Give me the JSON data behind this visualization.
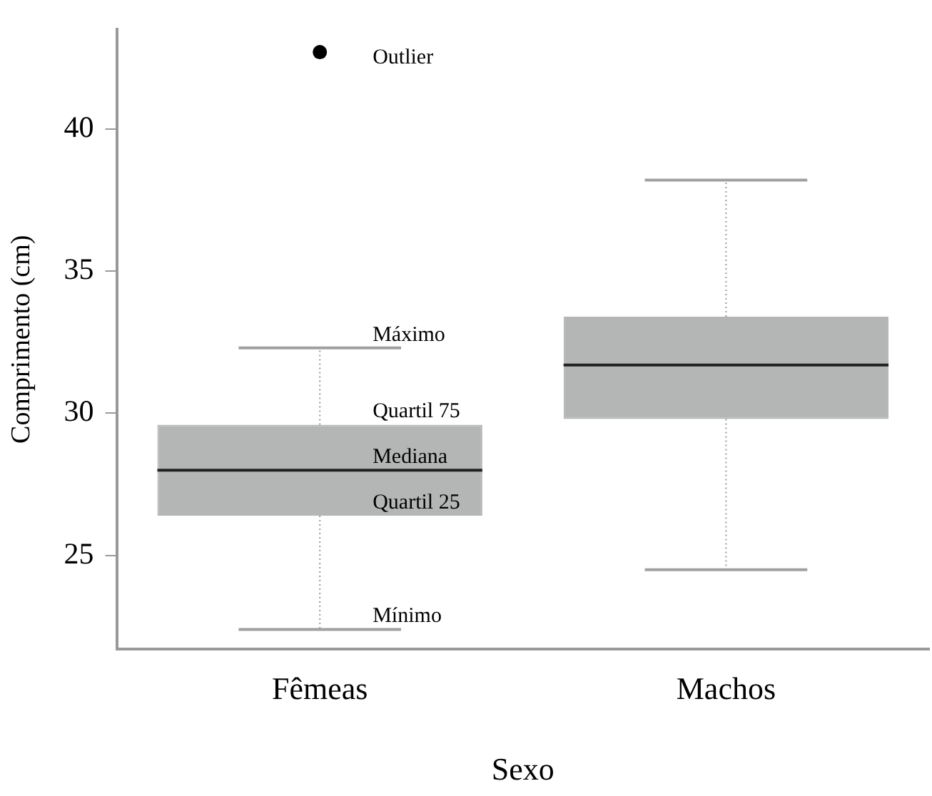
{
  "chart_data": {
    "type": "box",
    "xlabel": "Sexo",
    "ylabel": "Comprimento (cm)",
    "categories": [
      "Fêmeas",
      "Machos"
    ],
    "series": [
      {
        "color": "#b4b6b6",
        "boxes": [
          {
            "low": 22.4,
            "q1": 26.4,
            "median": 28.0,
            "q3": 29.6,
            "high": 32.3,
            "outliers": [
              42.7
            ]
          },
          {
            "low": 24.5,
            "q1": 29.8,
            "median": 31.7,
            "q3": 33.4,
            "high": 38.2
          }
        ]
      }
    ],
    "ylim": [
      21.7,
      43.5
    ],
    "yticks": [
      25,
      30,
      35,
      40
    ],
    "grid": false,
    "legend": false,
    "annotations": [
      "Outlier",
      {
        "text": "Máximo",
        "x": "Fêmeas",
        "y": 32.3
      },
      {
        "text": "Quartil 75",
        "x": "Fêmeas",
        "y": 29.6
      },
      {
        "text": "Mediana",
        "x": "Fêmeas",
        "y": 28.0
      },
      {
        "text": "Quartil 25",
        "x": "Fêmeas",
        "y": 26.4
      },
      {
        "text": "Mínimo",
        "x": "Fêmeas",
        "y": 22.4
      }
    ]
  }
}
